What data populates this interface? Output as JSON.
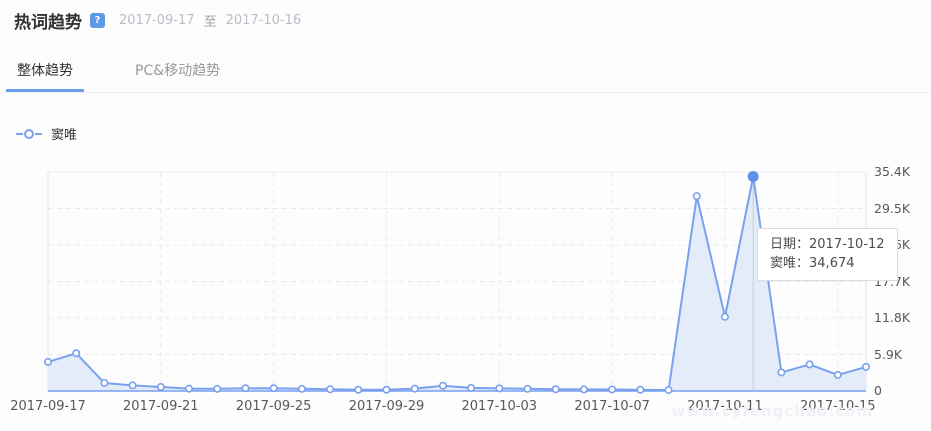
{
  "header": {
    "title": "热词趋势",
    "help_icon": "?",
    "date_start": "2017-09-17",
    "date_separator": "至",
    "date_end": "2017-10-16"
  },
  "tabs": [
    {
      "label": "整体趋势",
      "active": true
    },
    {
      "label": "PC&移动趋势",
      "active": false
    }
  ],
  "legend": {
    "series_name": "窦唯"
  },
  "tooltip": {
    "date_label": "日期：",
    "date_value": "2017-10-12",
    "series_label": "窦唯：",
    "series_value": "34,674"
  },
  "watermark": "www.cyfengchao.com",
  "colors": {
    "accent_blue": "#6ca0ea",
    "line": "#79a1ee",
    "area_fill": "#e4ecf9",
    "dot_fill": "#ffffff",
    "active_dot": "#5e90e8",
    "grid": "#e7eaef",
    "border": "#e0e3e8",
    "axis_line": "#7a9ff0",
    "indicator": "#c9cbd0",
    "help_icon_bg": "#5e9ae4"
  },
  "chart_data": {
    "type": "area",
    "title": "热词趋势",
    "x": [
      "2017-09-17",
      "2017-09-18",
      "2017-09-19",
      "2017-09-20",
      "2017-09-21",
      "2017-09-22",
      "2017-09-23",
      "2017-09-24",
      "2017-09-25",
      "2017-09-26",
      "2017-09-27",
      "2017-09-28",
      "2017-09-29",
      "2017-09-30",
      "2017-10-01",
      "2017-10-02",
      "2017-10-03",
      "2017-10-04",
      "2017-10-05",
      "2017-10-06",
      "2017-10-07",
      "2017-10-08",
      "2017-10-09",
      "2017-10-10",
      "2017-10-11",
      "2017-10-12",
      "2017-10-13",
      "2017-10-14",
      "2017-10-15",
      "2017-10-16"
    ],
    "series": [
      {
        "name": "窦唯",
        "values": [
          4700,
          6100,
          1300,
          900,
          650,
          380,
          350,
          450,
          450,
          350,
          280,
          200,
          200,
          380,
          850,
          500,
          420,
          350,
          280,
          260,
          250,
          200,
          150,
          31500,
          12000,
          34674,
          3000,
          4300,
          2600,
          3900
        ]
      }
    ],
    "x_tick_labels": [
      "2017-09-17",
      "2017-09-21",
      "2017-09-25",
      "2017-09-29",
      "2017-10-03",
      "2017-10-07",
      "2017-10-11",
      "2017-10-15"
    ],
    "y_tick_labels": [
      "35.4K",
      "29.5K",
      "23.6K",
      "17.7K",
      "11.8K",
      "5.9K",
      "0"
    ],
    "ylim": [
      0,
      35400
    ],
    "y_step": 5900,
    "grid": true,
    "legend_position": "top-left",
    "highlight": {
      "x": "2017-10-12",
      "value": 34674,
      "display_value": "34,674"
    }
  }
}
